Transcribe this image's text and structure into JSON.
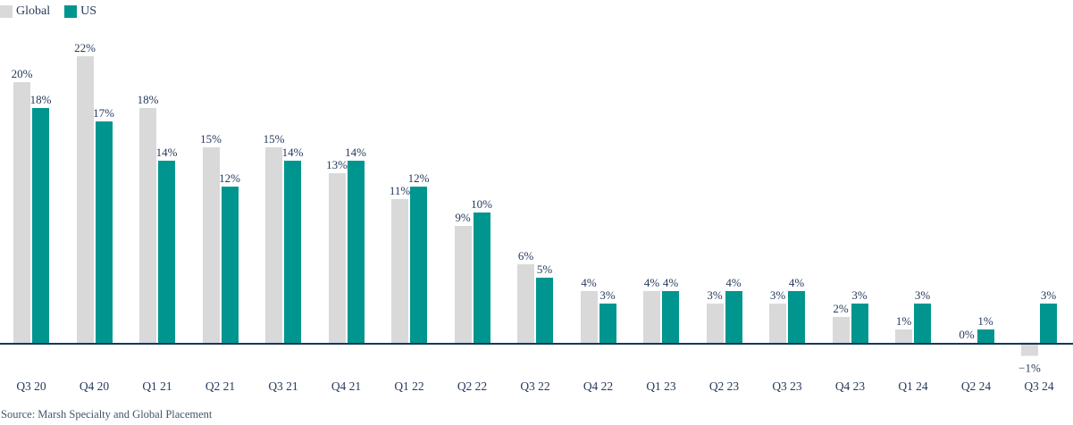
{
  "colors": {
    "global_bar": "#d9d9d9",
    "us_bar": "#00968f",
    "label_text": "#263a5c",
    "axis_line": "#17375e",
    "source_text": "#44546a"
  },
  "legend": {
    "items": [
      {
        "label": "Global",
        "color": "#d9d9d9"
      },
      {
        "label": "US",
        "color": "#00968f"
      }
    ]
  },
  "source": "Source: Marsh Specialty and Global Placement",
  "chart_data": {
    "type": "bar",
    "title": "",
    "xlabel": "",
    "ylabel": "",
    "value_suffix": "%",
    "categories": [
      "Q3 20",
      "Q4 20",
      "Q1 21",
      "Q2 21",
      "Q3 21",
      "Q4 21",
      "Q1 22",
      "Q2 22",
      "Q3 22",
      "Q4 22",
      "Q1 23",
      "Q2 23",
      "Q3 23",
      "Q4 23",
      "Q1 24",
      "Q2 24",
      "Q3 24"
    ],
    "series": [
      {
        "name": "Global",
        "color": "#d9d9d9",
        "values": [
          20,
          22,
          18,
          15,
          15,
          13,
          11,
          9,
          6,
          4,
          4,
          3,
          3,
          2,
          1,
          0,
          -1
        ]
      },
      {
        "name": "US",
        "color": "#00968f",
        "values": [
          18,
          17,
          14,
          12,
          14,
          14,
          12,
          10,
          5,
          3,
          4,
          4,
          4,
          3,
          3,
          1,
          3
        ]
      }
    ],
    "ylim": [
      -2,
      24
    ],
    "grid": false,
    "legend_position": "top-left",
    "data_labels": true
  }
}
